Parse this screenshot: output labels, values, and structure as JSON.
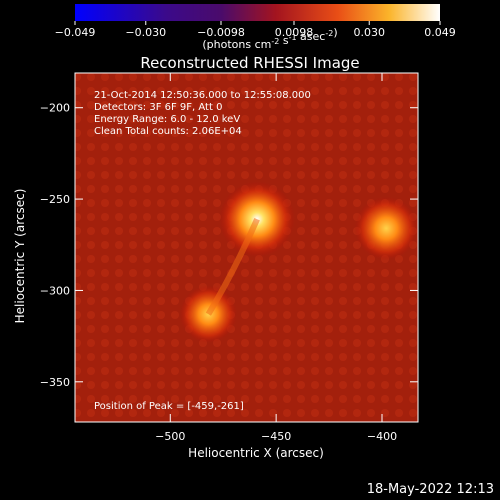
{
  "chart_data": {
    "type": "heatmap",
    "title": "Reconstructed RHESSI Image",
    "info_lines": [
      "21-Oct-2014 12:50:36.000 to 12:55:08.000",
      "Detectors: 3F 6F 9F, Att 0",
      "Energy Range: 6.0 - 12.0 keV",
      "Clean     Total counts: 2.06E+04"
    ],
    "peak_label": "Position of Peak = [-459,-261]",
    "xlabel": "Heliocentric X (arcsec)",
    "ylabel": "Heliocentric Y (arcsec)",
    "xlim": [
      -545,
      -383
    ],
    "ylim": [
      -372,
      -181
    ],
    "x_ticks": [
      -500,
      -450,
      -400
    ],
    "x_tick_labels": [
      "−500",
      "−450",
      "−400"
    ],
    "y_ticks": [
      -200,
      -250,
      -300,
      -350
    ],
    "y_tick_labels": [
      "−200",
      "−250",
      "−300",
      "−350"
    ],
    "colorbar": {
      "range": [
        -0.049,
        0.049
      ],
      "ticks": [
        -0.049,
        -0.03,
        -0.0098,
        0.0098,
        0.03,
        0.049
      ],
      "tick_labels": [
        "−0.049",
        "−0.030",
        "−0.0098",
        "0.0098",
        "0.030",
        "0.049"
      ],
      "units": "(photons cm<sup>-2</sup> s<sup>-1</sup> asec<sup>-2</sup>)"
    },
    "sources": [
      {
        "x": -459,
        "y": -261,
        "value": 0.049
      },
      {
        "x": -398,
        "y": -266,
        "value": 0.036
      },
      {
        "x": -482,
        "y": -313,
        "value": 0.03
      }
    ],
    "colors": {
      "background": "#000000",
      "foreground": "#ffffff"
    }
  },
  "footer": {
    "timestamp": "18-May-2022 12:13"
  }
}
